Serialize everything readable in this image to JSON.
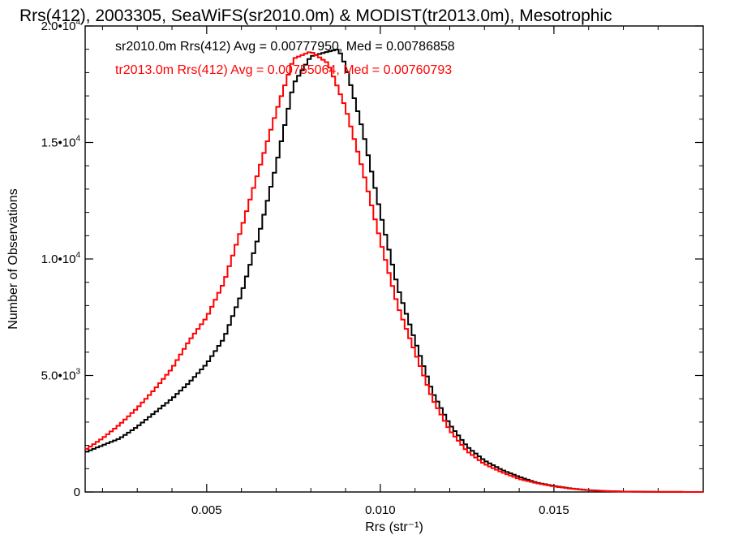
{
  "chart_data": {
    "type": "line",
    "step": true,
    "title": "Rrs(412), 2003305, SeaWiFS(sr2010.0m) & MODIST(tr2013.0m), Mesotrophic",
    "xlabel": "Rrs (str⁻¹)",
    "ylabel": "Number of Observations",
    "xlim": [
      0.0015,
      0.0193
    ],
    "ylim": [
      0,
      20000
    ],
    "x_ticks": [
      {
        "value": 0.005,
        "label": "0.005"
      },
      {
        "value": 0.01,
        "label": "0.010"
      },
      {
        "value": 0.015,
        "label": "0.015"
      }
    ],
    "y_ticks": [
      {
        "value": 0,
        "label": "0",
        "exp": ""
      },
      {
        "value": 5000,
        "label": "5.0•10",
        "exp": "3"
      },
      {
        "value": 10000,
        "label": "1.0•10",
        "exp": "4"
      },
      {
        "value": 15000,
        "label": "1.5•10",
        "exp": "4"
      },
      {
        "value": 20000,
        "label": "2.0•10",
        "exp": "4"
      }
    ],
    "legend_placement": "top-left",
    "series": [
      {
        "name": "sr2010.0m Rrs(412) Avg = 0.00777950, Med = 0.00786858",
        "color": "#000000",
        "points": [
          [
            0.0015,
            1700
          ],
          [
            0.002,
            2000
          ],
          [
            0.0025,
            2300
          ],
          [
            0.003,
            2800
          ],
          [
            0.0035,
            3400
          ],
          [
            0.004,
            4000
          ],
          [
            0.0045,
            4700
          ],
          [
            0.005,
            5500
          ],
          [
            0.0055,
            6600
          ],
          [
            0.006,
            8500
          ],
          [
            0.0065,
            11000
          ],
          [
            0.007,
            14000
          ],
          [
            0.0075,
            17500
          ],
          [
            0.008,
            18700
          ],
          [
            0.0085,
            18900
          ],
          [
            0.0088,
            19000
          ],
          [
            0.009,
            18300
          ],
          [
            0.0095,
            15500
          ],
          [
            0.01,
            12000
          ],
          [
            0.0105,
            8800
          ],
          [
            0.011,
            6500
          ],
          [
            0.0115,
            4300
          ],
          [
            0.012,
            2900
          ],
          [
            0.0125,
            1950
          ],
          [
            0.013,
            1350
          ],
          [
            0.0135,
            950
          ],
          [
            0.014,
            650
          ],
          [
            0.0145,
            400
          ],
          [
            0.015,
            260
          ],
          [
            0.0155,
            150
          ],
          [
            0.016,
            80
          ],
          [
            0.0165,
            40
          ],
          [
            0.017,
            20
          ],
          [
            0.018,
            5
          ],
          [
            0.0193,
            0
          ]
        ]
      },
      {
        "name": "tr2013.0m Rrs(412) Avg = 0.00755064, Med = 0.00760793",
        "color": "#ff0000",
        "points": [
          [
            0.0015,
            1800
          ],
          [
            0.002,
            2300
          ],
          [
            0.0025,
            2900
          ],
          [
            0.003,
            3600
          ],
          [
            0.0035,
            4400
          ],
          [
            0.004,
            5300
          ],
          [
            0.0045,
            6500
          ],
          [
            0.005,
            7500
          ],
          [
            0.0055,
            9000
          ],
          [
            0.006,
            11300
          ],
          [
            0.0065,
            13800
          ],
          [
            0.007,
            16300
          ],
          [
            0.0075,
            18600
          ],
          [
            0.008,
            18900
          ],
          [
            0.0085,
            18400
          ],
          [
            0.009,
            16500
          ],
          [
            0.0095,
            13800
          ],
          [
            0.01,
            10800
          ],
          [
            0.0105,
            8000
          ],
          [
            0.011,
            6000
          ],
          [
            0.0115,
            4000
          ],
          [
            0.012,
            2650
          ],
          [
            0.0125,
            1750
          ],
          [
            0.013,
            1200
          ],
          [
            0.0135,
            850
          ],
          [
            0.014,
            560
          ],
          [
            0.0145,
            380
          ],
          [
            0.015,
            240
          ],
          [
            0.0155,
            140
          ],
          [
            0.016,
            75
          ],
          [
            0.0165,
            35
          ],
          [
            0.017,
            18
          ],
          [
            0.018,
            5
          ],
          [
            0.0193,
            0
          ]
        ]
      }
    ]
  }
}
